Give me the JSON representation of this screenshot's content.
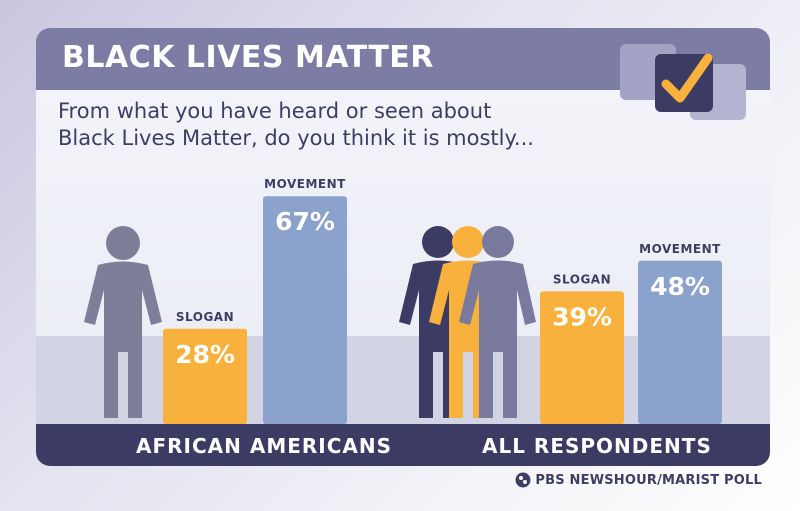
{
  "title": "BLACK LIVES MATTER",
  "question_line1": "From what you have heard or seen about",
  "question_line2": "Black Lives Matter, do you think it is mostly...",
  "source": "PBS NEWSHOUR/MARIST POLL",
  "colors": {
    "header": "#7d7ca5",
    "slogan": "#f9b13d",
    "movement": "#8aa2cc",
    "footer": "#3c3b63",
    "figure_gray": "#7f7e99",
    "figure_navy": "#3c3b63",
    "figure_orange": "#f9b13d",
    "figure_slate": "#7a7a9e"
  },
  "icons": [
    "checkmark-box-icon",
    "person-icon",
    "group-of-people-icon",
    "pbs-logo-icon"
  ],
  "chart_data": {
    "type": "bar",
    "categories": [
      "AFRICAN AMERICANS",
      "ALL RESPONDENTS"
    ],
    "series": [
      {
        "name": "SLOGAN",
        "values": [
          28,
          39
        ]
      },
      {
        "name": "MOVEMENT",
        "values": [
          67,
          48
        ]
      }
    ],
    "value_suffix": "%",
    "ylim": [
      0,
      100
    ],
    "grid": false,
    "legend": "none (labels above bars)"
  }
}
